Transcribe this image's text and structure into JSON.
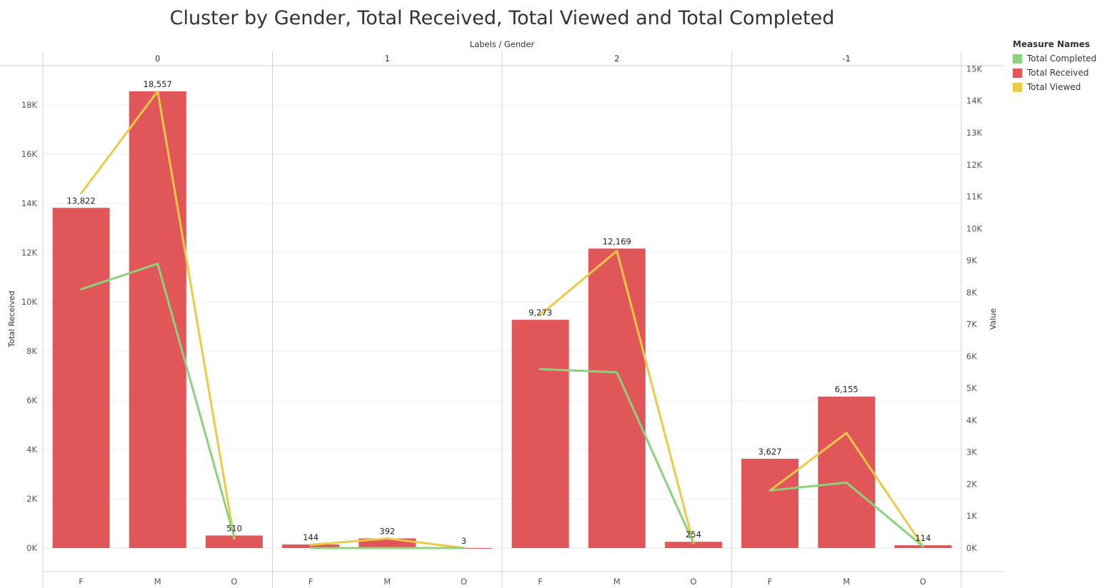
{
  "chart_data": {
    "type": "bar+line",
    "title": "Cluster by Gender, Total Received, Total Viewed and Total Completed",
    "column_header": "Labels / Gender",
    "panels": [
      "0",
      "1",
      "2",
      "-1"
    ],
    "genders": [
      "F",
      "M",
      "O"
    ],
    "left_axis": {
      "label": "Total Received",
      "range": [
        0,
        19600
      ],
      "ticks": [
        0,
        2000,
        4000,
        6000,
        8000,
        10000,
        12000,
        14000,
        16000,
        18000
      ],
      "tick_labels": [
        "0K",
        "2K",
        "4K",
        "6K",
        "8K",
        "10K",
        "12K",
        "14K",
        "16K",
        "18K"
      ]
    },
    "right_axis": {
      "label": "Value",
      "range": [
        0,
        15100
      ],
      "ticks": [
        0,
        1000,
        2000,
        3000,
        4000,
        5000,
        6000,
        7000,
        8000,
        9000,
        10000,
        11000,
        12000,
        13000,
        14000,
        15000
      ],
      "tick_labels": [
        "0K",
        "1K",
        "2K",
        "3K",
        "4K",
        "5K",
        "6K",
        "7K",
        "8K",
        "9K",
        "10K",
        "11K",
        "12K",
        "13K",
        "14K",
        "15K"
      ]
    },
    "bar_series": {
      "name": "Total Received",
      "color": "#E15759",
      "values": [
        [
          13822,
          18557,
          510
        ],
        [
          144,
          392,
          3
        ],
        [
          9273,
          12169,
          254
        ],
        [
          3627,
          6155,
          114
        ]
      ],
      "labels": [
        [
          "13,822",
          "18,557",
          "510"
        ],
        [
          "144",
          "392",
          "3"
        ],
        [
          "9,273",
          "12,169",
          "254"
        ],
        [
          "3,627",
          "6,155",
          "114"
        ]
      ]
    },
    "line_series": [
      {
        "name": "Total Viewed",
        "color": "#EDC948",
        "values": [
          [
            11100,
            14300,
            300
          ],
          [
            100,
            300,
            0
          ],
          [
            7300,
            9300,
            150
          ],
          [
            1800,
            3600,
            50
          ]
        ]
      },
      {
        "name": "Total Completed",
        "color": "#8CD17D",
        "values": [
          [
            8100,
            8900,
            350
          ],
          [
            0,
            0,
            0
          ],
          [
            5600,
            5500,
            150
          ],
          [
            1800,
            2050,
            50
          ]
        ]
      }
    ]
  },
  "legend": {
    "title": "Measure Names",
    "items": [
      {
        "label": "Total Completed",
        "color": "#8CD17D"
      },
      {
        "label": "Total Received",
        "color": "#E15759"
      },
      {
        "label": "Total Viewed",
        "color": "#EDC948"
      }
    ]
  }
}
